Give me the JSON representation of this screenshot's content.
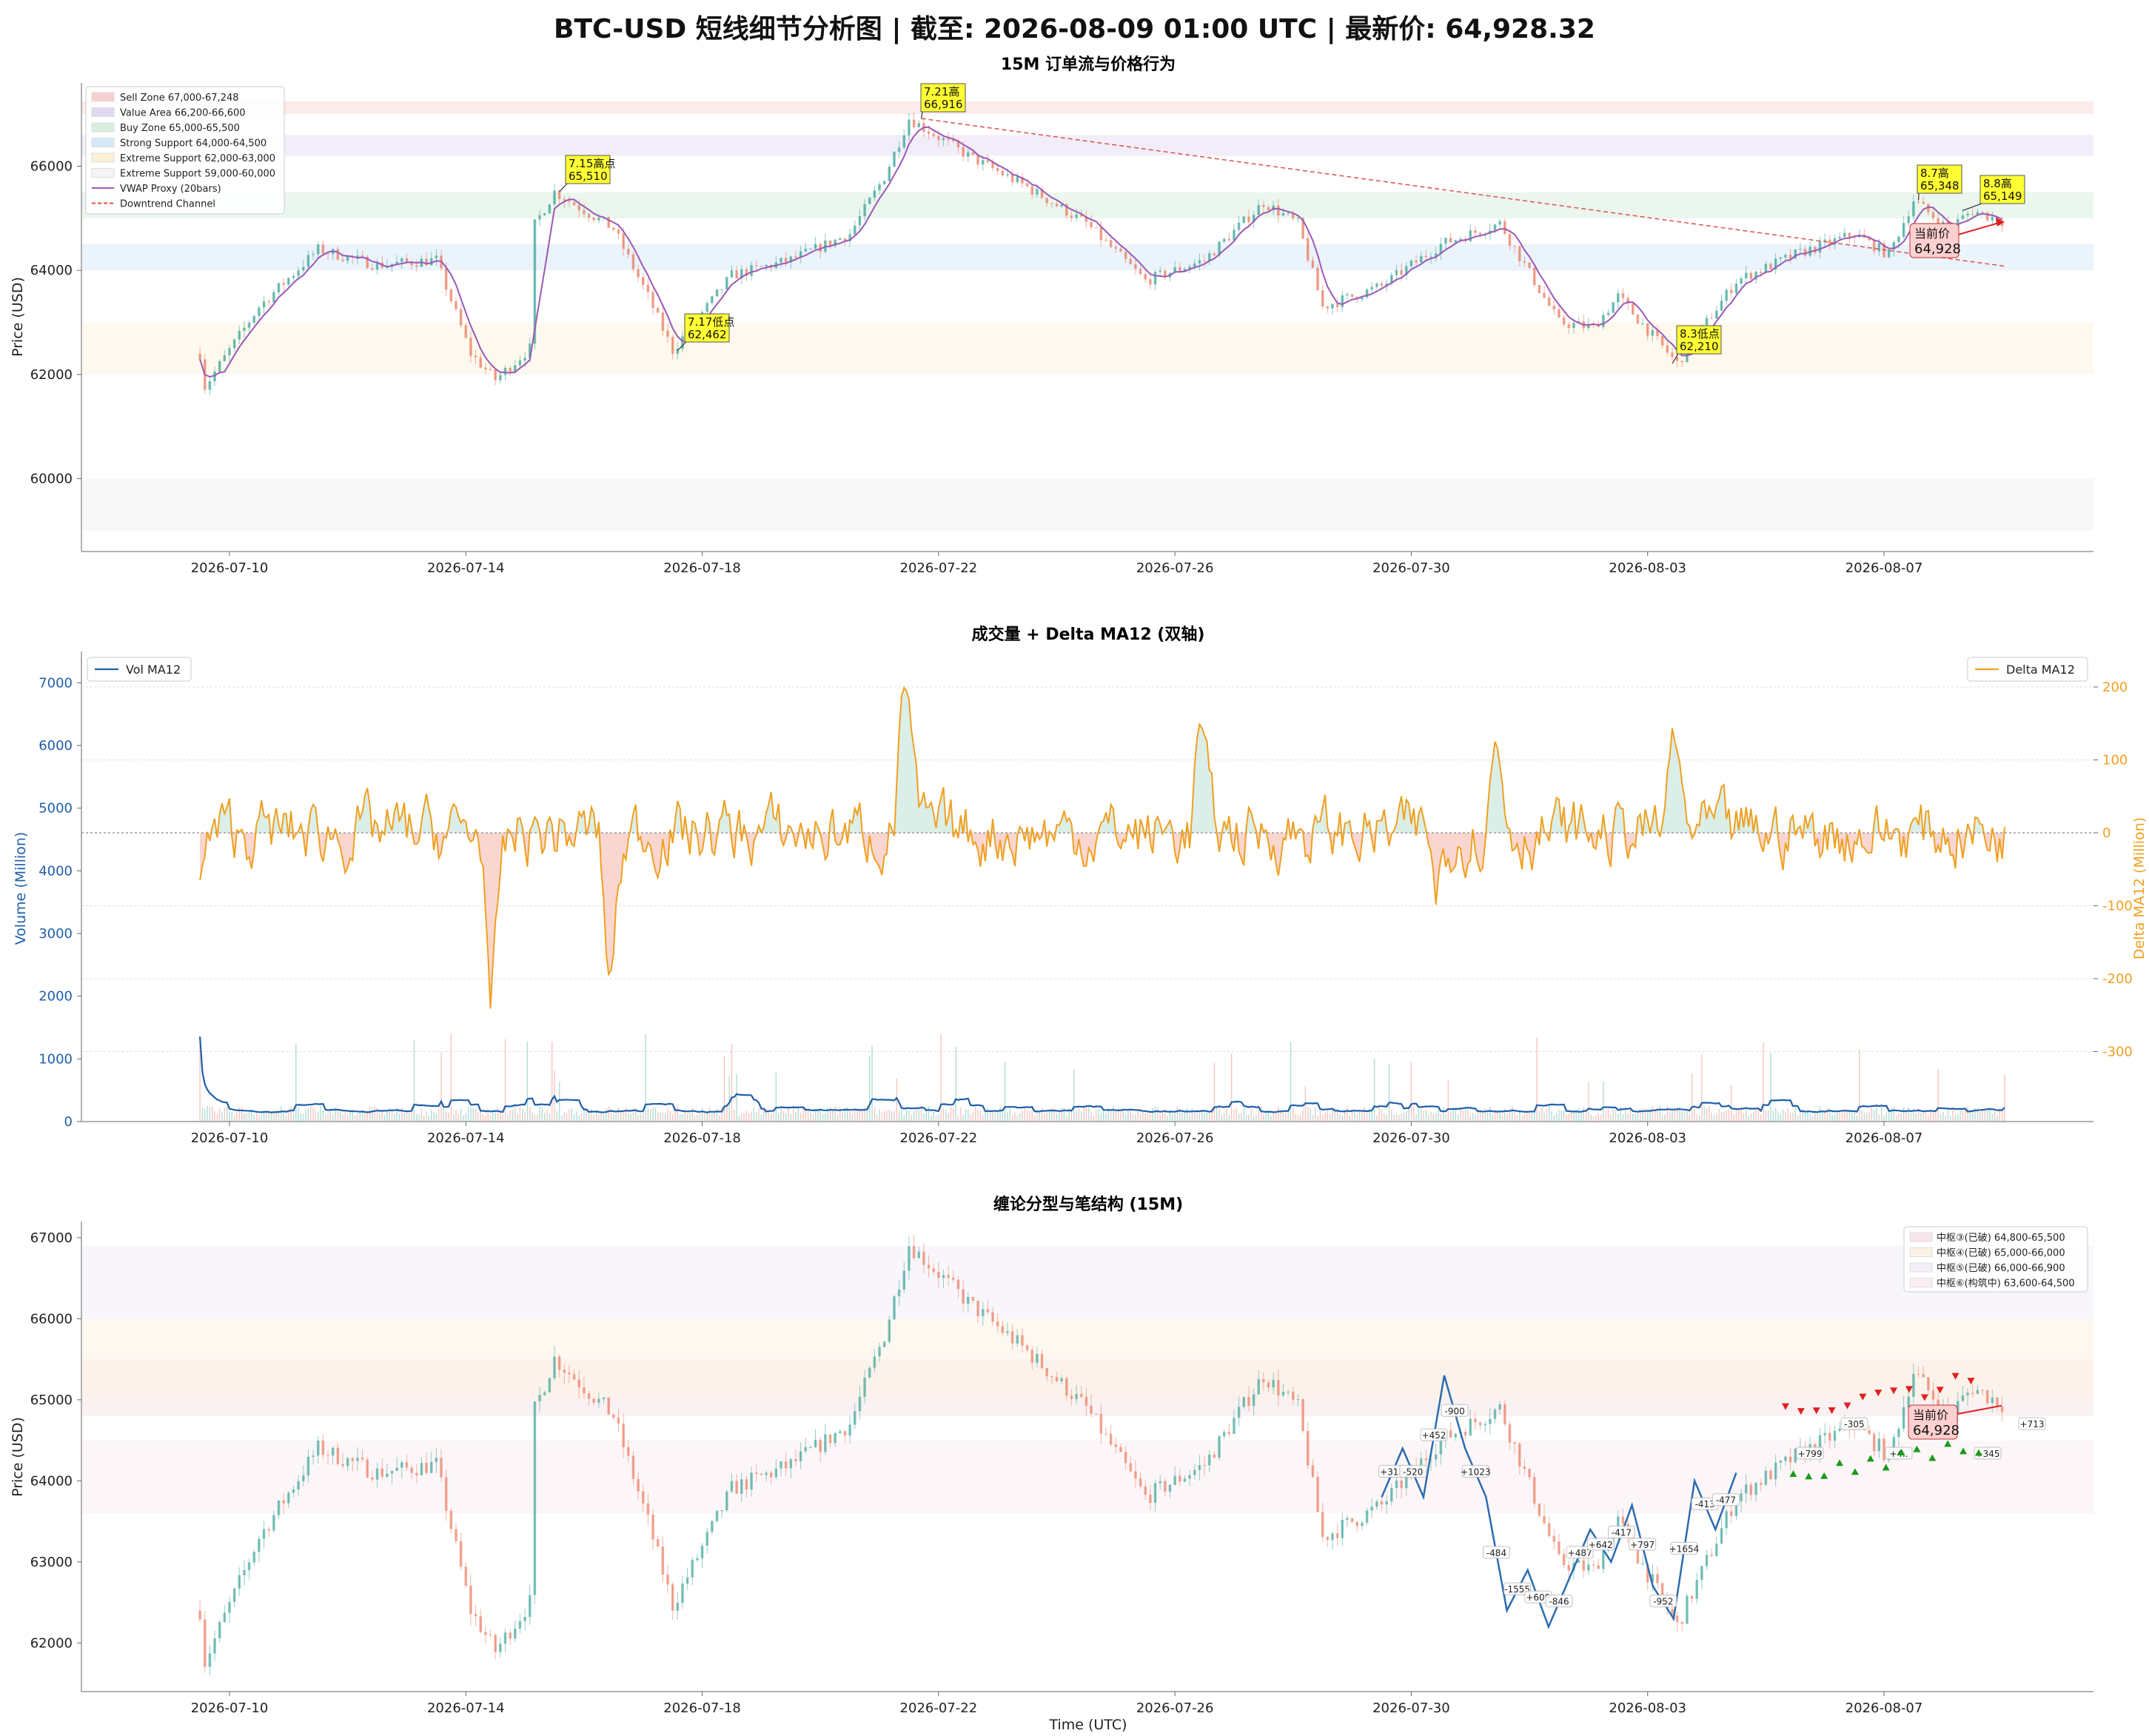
{
  "title": "BTC-USD 短线细节分析图 | 截至: 2026-08-09 01:00 UTC | 最新价: 64,928.32",
  "colors": {
    "up": "#2a9d8f",
    "down": "#e76f51",
    "vwap": "#9b59b6",
    "trend": "#e05050",
    "vol": "#1f5fa8",
    "delta": "#f0a020",
    "zigzag": "#2b6cb0",
    "annot_bg": "#ffff33",
    "current_bg": "#ffd0d0",
    "pivot_up": "#e02020",
    "pivot_down": "#1a9a1a"
  },
  "x_ticks": [
    "2026-07-10",
    "2026-07-14",
    "2026-07-18",
    "2026-07-22",
    "2026-07-26",
    "2026-07-30",
    "2026-08-03",
    "2026-08-07"
  ],
  "panel1": {
    "title": "15M 订单流与价格行为",
    "ylabel": "Price (USD)",
    "yticks": [
      "60000",
      "62000",
      "64000",
      "66000"
    ],
    "legend": [
      {
        "label": "Sell Zone 67,000-67,248",
        "color": "#f8d0d0",
        "kind": "patch"
      },
      {
        "label": "Value Area 66,200-66,600",
        "color": "#e0d8f0",
        "kind": "patch"
      },
      {
        "label": "Buy Zone 65,000-65,500",
        "color": "#d8efe0",
        "kind": "patch"
      },
      {
        "label": "Strong Support 64,000-64,500",
        "color": "#d6e8f7",
        "kind": "patch"
      },
      {
        "label": "Extreme Support 62,000-63,000",
        "color": "#fbf0d8",
        "kind": "patch"
      },
      {
        "label": "Extreme Support 59,000-60,000",
        "color": "#f4f4f4",
        "kind": "patch"
      },
      {
        "label": "VWAP Proxy (20bars)",
        "color": "#9b59b6",
        "kind": "line"
      },
      {
        "label": "Downtrend Channel",
        "color": "#e05050",
        "kind": "dash"
      }
    ],
    "annotations": [
      {
        "line1": "7.15高点",
        "line2": "65,510"
      },
      {
        "line1": "7.17低点",
        "line2": "62,462"
      },
      {
        "line1": "7.21高",
        "line2": "66,916"
      },
      {
        "line1": "8.3低点",
        "line2": "62,210"
      },
      {
        "line1": "8.7高",
        "line2": "65,348"
      },
      {
        "line1": "8.8高",
        "line2": "65,149"
      }
    ],
    "current": {
      "line1": "当前价",
      "line2": "64,928"
    }
  },
  "panel2": {
    "title": "成交量 + Delta MA12 (双轴)",
    "ylabel_left": "Volume (Million)",
    "ylabel_right": "Delta MA12 (Million)",
    "yticks_left": [
      "0",
      "1000",
      "2000",
      "3000",
      "4000",
      "5000",
      "6000",
      "7000"
    ],
    "yticks_right": [
      "-300",
      "-200",
      "-100",
      "0",
      "100",
      "200"
    ],
    "legend_left": "Vol MA12",
    "legend_right": "Delta MA12"
  },
  "panel3": {
    "title": "缠论分型与笔结构 (15M)",
    "ylabel": "Price (USD)",
    "xlabel": "Time (UTC)",
    "yticks": [
      "62000",
      "63000",
      "64000",
      "65000",
      "66000",
      "67000"
    ],
    "legend": [
      {
        "label": "中枢③(已破) 64,800-65,500",
        "color": "#f6e6ea"
      },
      {
        "label": "中枢④(已破) 65,000-66,000",
        "color": "#fbf2e3"
      },
      {
        "label": "中枢⑤(已破) 66,000-66,900",
        "color": "#f3eff8"
      },
      {
        "label": "中枢⑥(构筑中) 63,600-64,500",
        "color": "#fbeef3"
      }
    ],
    "bi_labels": [
      "+315",
      "-520",
      "+452",
      "-900",
      "+1023",
      "-484",
      "-1555",
      "+609",
      "-846",
      "+487",
      "+642",
      "-417",
      "+797",
      "-952",
      "+1654",
      "-413",
      "-477",
      "+799",
      "-305",
      "+4..",
      "+548",
      "+345",
      "+713"
    ],
    "current": {
      "line1": "当前价",
      "line2": "64,928"
    }
  },
  "chart_data": [
    {
      "type": "candlestick",
      "title": "15M 订单流与价格行为",
      "ylabel": "Price (USD)",
      "ylim": [
        58600,
        67600
      ],
      "x_range": [
        "2026-07-09",
        "2026-08-09"
      ],
      "series": [
        {
          "name": "VWAP Proxy (20bars)",
          "values": []
        }
      ],
      "key_points": [
        {
          "date": "2026-07-09",
          "price": 62400
        },
        {
          "date": "2026-07-09",
          "price": 61700
        },
        {
          "date": "2026-07-10",
          "price": 63300
        },
        {
          "date": "2026-07-11",
          "price": 64400
        },
        {
          "date": "2026-07-12",
          "price": 64100
        },
        {
          "date": "2026-07-13",
          "price": 64200
        },
        {
          "date": "2026-07-14",
          "price": 62400
        },
        {
          "date": "2026-07-14",
          "price": 61900
        },
        {
          "date": "2026-07-15",
          "price": 62500
        },
        {
          "date": "2026-07-15",
          "price": 64800
        },
        {
          "date": "2026-07-15",
          "price": 65510
        },
        {
          "date": "2026-07-16",
          "price": 64800
        },
        {
          "date": "2026-07-17",
          "price": 63500
        },
        {
          "date": "2026-07-17",
          "price": 62462
        },
        {
          "date": "2026-07-18",
          "price": 63900
        },
        {
          "date": "2026-07-19",
          "price": 64200
        },
        {
          "date": "2026-07-20",
          "price": 64700
        },
        {
          "date": "2026-07-21",
          "price": 65800
        },
        {
          "date": "2026-07-21",
          "price": 66916
        },
        {
          "date": "2026-07-22",
          "price": 66200
        },
        {
          "date": "2026-07-23",
          "price": 65600
        },
        {
          "date": "2026-07-24",
          "price": 64900
        },
        {
          "date": "2026-07-25",
          "price": 63800
        },
        {
          "date": "2026-07-26",
          "price": 64200
        },
        {
          "date": "2026-07-27",
          "price": 65300
        },
        {
          "date": "2026-07-28",
          "price": 64900
        },
        {
          "date": "2026-07-28",
          "price": 63300
        },
        {
          "date": "2026-07-29",
          "price": 63700
        },
        {
          "date": "2026-07-30",
          "price": 64500
        },
        {
          "date": "2026-07-31",
          "price": 64900
        },
        {
          "date": "2026-08-01",
          "price": 63000
        },
        {
          "date": "2026-08-02",
          "price": 62900
        },
        {
          "date": "2026-08-02",
          "price": 63500
        },
        {
          "date": "2026-08-03",
          "price": 62210
        },
        {
          "date": "2026-08-04",
          "price": 63800
        },
        {
          "date": "2026-08-05",
          "price": 64300
        },
        {
          "date": "2026-08-06",
          "price": 64700
        },
        {
          "date": "2026-08-07",
          "price": 64300
        },
        {
          "date": "2026-08-07",
          "price": 65348
        },
        {
          "date": "2026-08-08",
          "price": 64800
        },
        {
          "date": "2026-08-08",
          "price": 65149
        },
        {
          "date": "2026-08-09",
          "price": 64928
        }
      ],
      "zones": [
        {
          "label": "Sell Zone 67,000-67,248",
          "low": 67000,
          "high": 67248
        },
        {
          "label": "Value Area 66,200-66,600",
          "low": 66200,
          "high": 66600
        },
        {
          "label": "Buy Zone 65,000-65,500",
          "low": 65000,
          "high": 65500
        },
        {
          "label": "Strong Support 64,000-64,500",
          "low": 64000,
          "high": 64500
        },
        {
          "label": "Extreme Support 62,000-63,000",
          "low": 62000,
          "high": 63000
        },
        {
          "label": "Extreme Support 59,000-60,000",
          "low": 59000,
          "high": 60000
        }
      ],
      "downtrend_channel": [
        {
          "date": "2026-07-21",
          "price": 66916
        },
        {
          "date": "2026-08-09",
          "price": 64080
        }
      ],
      "annotations": [
        {
          "text": "7.15高点 65,510",
          "date": "2026-07-15",
          "price": 65510
        },
        {
          "text": "7.17低点 62,462",
          "date": "2026-07-17",
          "price": 62462
        },
        {
          "text": "7.21高 66,916",
          "date": "2026-07-21",
          "price": 66916
        },
        {
          "text": "8.3低点 62,210",
          "date": "2026-08-03",
          "price": 62210
        },
        {
          "text": "8.7高 65,348",
          "date": "2026-08-07",
          "price": 65348
        },
        {
          "text": "8.8高 65,149",
          "date": "2026-08-08",
          "price": 65149
        },
        {
          "text": "当前价 64,928",
          "date": "2026-08-09",
          "price": 64928
        }
      ]
    },
    {
      "type": "line",
      "title": "成交量 + Delta MA12 (双轴)",
      "ylabel": "Volume (Million)",
      "ylabel_right": "Delta MA12 (Million)",
      "ylim": [
        0,
        7500
      ],
      "ylim_right": [
        -400,
        230
      ],
      "series": [
        {
          "name": "Vol MA12",
          "axis": "left",
          "typical_range": [
            0,
            700
          ]
        },
        {
          "name": "Delta MA12",
          "axis": "right",
          "notable_points": [
            {
              "date": "2026-07-09",
              "value": -160
            },
            {
              "date": "2026-07-14",
              "value": 160
            },
            {
              "date": "2026-07-14",
              "value": -330
            },
            {
              "date": "2026-07-16",
              "value": -225
            },
            {
              "date": "2026-07-21",
              "value": 215
            },
            {
              "date": "2026-07-21",
              "value": 200
            },
            {
              "date": "2026-07-26",
              "value": 170
            },
            {
              "date": "2026-07-30",
              "value": 165
            },
            {
              "date": "2026-07-30",
              "value": -155
            },
            {
              "date": "2026-07-31",
              "value": 140
            },
            {
              "date": "2026-08-03",
              "value": 155
            }
          ]
        }
      ]
    },
    {
      "type": "candlestick",
      "title": "缠论分型与笔结构 (15M)",
      "ylabel": "Price (USD)",
      "xlabel": "Time (UTC)",
      "ylim": [
        61600,
        67200
      ],
      "zones": [
        {
          "label": "中枢③(已破) 64,800-65,500",
          "low": 64800,
          "high": 65500
        },
        {
          "label": "中枢④(已破) 65,000-66,000",
          "low": 65000,
          "high": 66000
        },
        {
          "label": "中枢⑤(已破) 66,000-66,900",
          "low": 66000,
          "high": 66900
        },
        {
          "label": "中枢⑥(构筑中) 63,600-64,500",
          "low": 63600,
          "high": 64500
        }
      ],
      "bi_strokes": [
        {
          "date": "2026-07-29",
          "price": 63800
        },
        {
          "date": "2026-07-30",
          "price": 64400
        },
        {
          "date": "2026-07-30",
          "price": 63800
        },
        {
          "date": "2026-07-31",
          "price": 65300
        },
        {
          "date": "2026-07-31",
          "price": 64400
        },
        {
          "date": "2026-08-01",
          "price": 63800
        },
        {
          "date": "2026-08-01",
          "price": 62400
        },
        {
          "date": "2026-08-01",
          "price": 62900
        },
        {
          "date": "2026-08-02",
          "price": 62200
        },
        {
          "date": "2026-08-02",
          "price": 62800
        },
        {
          "date": "2026-08-02",
          "price": 63400
        },
        {
          "date": "2026-08-02",
          "price": 63000
        },
        {
          "date": "2026-08-02",
          "price": 63700
        },
        {
          "date": "2026-08-03",
          "price": 62700
        },
        {
          "date": "2026-08-03",
          "price": 62300
        },
        {
          "date": "2026-08-03",
          "price": 64000
        },
        {
          "date": "2026-08-04",
          "price": 63400
        },
        {
          "date": "2026-08-04",
          "price": 64100
        }
      ]
    }
  ]
}
